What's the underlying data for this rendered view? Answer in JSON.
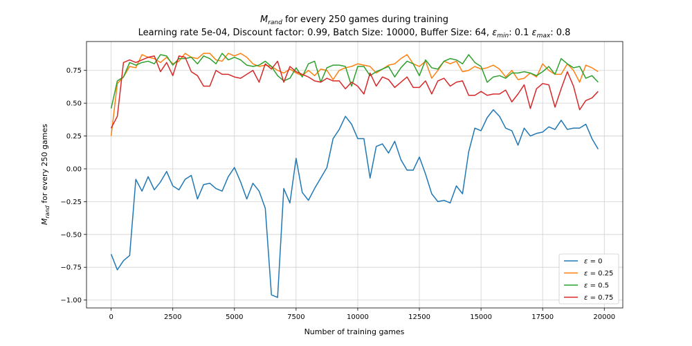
{
  "chart_data": {
    "type": "line",
    "title": "M_rand for every 250 games during training",
    "title_main_symbol": "M",
    "title_main_sub": "rand",
    "title_main_rest": " for every 250 games during training",
    "subtitle_prefix": "Learning rate 5e-04, Discount factor: 0.99, Batch Size: 10000, Buffer Size: 64, ",
    "subtitle_eps_symbol": "ε",
    "subtitle_eps_min_sub": "min",
    "subtitle_eps_min_val": ": 0.1 ",
    "subtitle_eps_max_sub": "max",
    "subtitle_eps_max_val": ": 0.8",
    "xlabel": "Number of training games",
    "ylabel_symbol": "M",
    "ylabel_sub": "rand",
    "ylabel_rest": " for every 250 games",
    "xlim": [
      -1000,
      20750
    ],
    "ylim": [
      -1.06,
      0.97
    ],
    "xticks": [
      0,
      2500,
      5000,
      7500,
      10000,
      12500,
      15000,
      17500,
      20000
    ],
    "yticks": [
      -1.0,
      -0.75,
      -0.5,
      -0.25,
      0.0,
      0.25,
      0.5,
      0.75
    ],
    "ytick_labels": [
      "−1.00",
      "−0.75",
      "−0.50",
      "−0.25",
      "0.00",
      "0.25",
      "0.50",
      "0.75"
    ],
    "grid": true,
    "legend_position": "lower-right",
    "x_step": 250,
    "series": [
      {
        "name": "ε = 0",
        "legend_symbol": "ε",
        "legend_value": " = 0",
        "color": "#1f77b4",
        "values": [
          -0.65,
          -0.77,
          -0.7,
          -0.66,
          -0.08,
          -0.17,
          -0.06,
          -0.16,
          -0.1,
          -0.02,
          -0.13,
          -0.16,
          -0.08,
          -0.05,
          -0.23,
          -0.12,
          -0.11,
          -0.15,
          -0.17,
          -0.06,
          0.01,
          -0.1,
          -0.23,
          -0.11,
          -0.17,
          -0.3,
          -0.96,
          -0.98,
          -0.15,
          -0.26,
          0.08,
          -0.18,
          -0.24,
          -0.15,
          -0.07,
          0.01,
          0.23,
          0.3,
          0.4,
          0.34,
          0.23,
          0.23,
          -0.07,
          0.17,
          0.19,
          0.12,
          0.21,
          0.07,
          -0.01,
          -0.01,
          0.09,
          -0.04,
          -0.19,
          -0.25,
          -0.24,
          -0.26,
          -0.13,
          -0.19,
          0.13,
          0.31,
          0.29,
          0.39,
          0.45,
          0.4,
          0.31,
          0.29,
          0.18,
          0.31,
          0.25,
          0.27,
          0.28,
          0.32,
          0.3,
          0.37,
          0.3,
          0.31,
          0.31,
          0.34,
          0.23,
          0.15
        ]
      },
      {
        "name": "ε = 0.25",
        "legend_symbol": "ε",
        "legend_value": " = 0.25",
        "color": "#ff7f0e",
        "values": [
          0.25,
          0.65,
          0.7,
          0.78,
          0.77,
          0.87,
          0.85,
          0.84,
          0.81,
          0.85,
          0.8,
          0.82,
          0.88,
          0.85,
          0.84,
          0.88,
          0.88,
          0.83,
          0.82,
          0.88,
          0.86,
          0.88,
          0.85,
          0.8,
          0.78,
          0.79,
          0.78,
          0.75,
          0.73,
          0.76,
          0.73,
          0.71,
          0.75,
          0.71,
          0.76,
          0.75,
          0.68,
          0.75,
          0.77,
          0.78,
          0.8,
          0.79,
          0.78,
          0.73,
          0.76,
          0.79,
          0.8,
          0.84,
          0.87,
          0.8,
          0.78,
          0.82,
          0.69,
          0.75,
          0.82,
          0.8,
          0.82,
          0.74,
          0.75,
          0.78,
          0.76,
          0.77,
          0.79,
          0.76,
          0.7,
          0.75,
          0.68,
          0.69,
          0.73,
          0.7,
          0.8,
          0.75,
          0.72,
          0.72,
          0.8,
          0.75,
          0.66,
          0.79,
          0.77,
          0.74
        ]
      },
      {
        "name": "ε = 0.5",
        "legend_symbol": "ε",
        "legend_value": " = 0.5",
        "color": "#2ca02c",
        "values": [
          0.46,
          0.67,
          0.7,
          0.81,
          0.79,
          0.81,
          0.82,
          0.8,
          0.87,
          0.86,
          0.79,
          0.84,
          0.84,
          0.85,
          0.8,
          0.86,
          0.84,
          0.8,
          0.88,
          0.83,
          0.85,
          0.83,
          0.79,
          0.78,
          0.79,
          0.82,
          0.78,
          0.71,
          0.67,
          0.69,
          0.77,
          0.7,
          0.8,
          0.82,
          0.66,
          0.77,
          0.79,
          0.79,
          0.78,
          0.63,
          0.78,
          0.78,
          0.71,
          0.74,
          0.76,
          0.78,
          0.7,
          0.77,
          0.82,
          0.8,
          0.71,
          0.83,
          0.77,
          0.76,
          0.82,
          0.84,
          0.83,
          0.8,
          0.87,
          0.81,
          0.78,
          0.66,
          0.7,
          0.71,
          0.69,
          0.73,
          0.73,
          0.74,
          0.73,
          0.71,
          0.74,
          0.78,
          0.72,
          0.84,
          0.8,
          0.77,
          0.78,
          0.69,
          0.71,
          0.66
        ]
      },
      {
        "name": "ε = 0.75",
        "legend_symbol": "ε",
        "legend_value": " = 0.75",
        "color": "#d62728",
        "values": [
          0.31,
          0.4,
          0.81,
          0.83,
          0.81,
          0.83,
          0.85,
          0.86,
          0.74,
          0.81,
          0.71,
          0.86,
          0.85,
          0.74,
          0.71,
          0.63,
          0.63,
          0.75,
          0.72,
          0.72,
          0.7,
          0.69,
          0.72,
          0.75,
          0.66,
          0.8,
          0.76,
          0.82,
          0.66,
          0.78,
          0.74,
          0.72,
          0.7,
          0.67,
          0.66,
          0.69,
          0.67,
          0.67,
          0.61,
          0.66,
          0.63,
          0.57,
          0.73,
          0.63,
          0.7,
          0.68,
          0.62,
          0.66,
          0.7,
          0.62,
          0.62,
          0.67,
          0.57,
          0.67,
          0.69,
          0.63,
          0.66,
          0.67,
          0.56,
          0.56,
          0.59,
          0.56,
          0.57,
          0.57,
          0.6,
          0.51,
          0.57,
          0.64,
          0.46,
          0.61,
          0.65,
          0.64,
          0.47,
          0.61,
          0.74,
          0.63,
          0.45,
          0.52,
          0.54,
          0.59
        ]
      }
    ]
  }
}
